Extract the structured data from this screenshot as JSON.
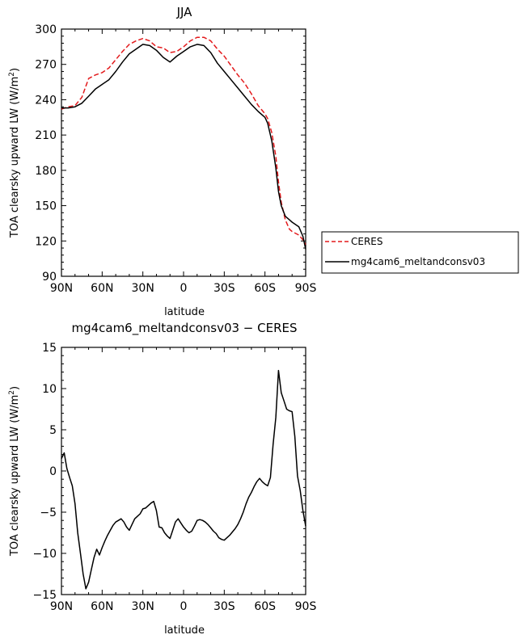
{
  "chart_data": [
    {
      "type": "line",
      "title": "JJA",
      "xlabel": "latitude",
      "ylabel": "TOA clearsky upward LW (W/m²)",
      "xlim": [
        90,
        -90
      ],
      "ylim": [
        90,
        300
      ],
      "xticks": [
        90,
        60,
        30,
        0,
        -30,
        -60,
        -90
      ],
      "xtick_labels": [
        "90N",
        "60N",
        "30N",
        "0",
        "30S",
        "60S",
        "90S"
      ],
      "yticks": [
        90,
        120,
        150,
        180,
        210,
        240,
        270,
        300
      ],
      "ytick_labels": [
        "90",
        "120",
        "150",
        "180",
        "210",
        "240",
        "270",
        "300"
      ],
      "legend": {
        "placement": "right",
        "entries": [
          "CERES",
          "mg4cam6_meltandconsv03"
        ]
      },
      "series": [
        {
          "name": "CERES",
          "color": "#e31a1c",
          "dash": "dashed",
          "x": [
            90,
            85,
            80,
            75,
            70,
            65,
            60,
            55,
            50,
            45,
            40,
            35,
            30,
            25,
            20,
            15,
            10,
            5,
            0,
            -5,
            -10,
            -15,
            -20,
            -25,
            -30,
            -35,
            -40,
            -45,
            -50,
            -55,
            -60,
            -62,
            -65,
            -68,
            -70,
            -72,
            -75,
            -78,
            -80,
            -85,
            -88,
            -90
          ],
          "values": [
            232,
            234,
            235,
            242,
            258,
            261,
            263,
            267,
            274,
            281,
            287,
            290,
            292,
            290,
            285,
            284,
            280,
            281,
            285,
            290,
            293,
            293,
            290,
            283,
            277,
            269,
            261,
            254,
            245,
            235,
            228,
            224,
            212,
            192,
            170,
            153,
            138,
            130,
            128,
            125,
            121,
            117
          ]
        },
        {
          "name": "mg4cam6_meltandconsv03",
          "color": "#000000",
          "dash": "solid",
          "x": [
            90,
            85,
            80,
            75,
            70,
            65,
            60,
            55,
            50,
            45,
            40,
            35,
            30,
            25,
            20,
            15,
            10,
            5,
            0,
            -5,
            -10,
            -15,
            -20,
            -25,
            -30,
            -35,
            -40,
            -45,
            -50,
            -55,
            -60,
            -62,
            -65,
            -68,
            -70,
            -72,
            -75,
            -78,
            -80,
            -85,
            -88,
            -90
          ],
          "values": [
            233,
            233,
            234,
            237,
            243,
            249,
            253,
            257,
            264,
            272,
            279,
            283,
            287,
            286,
            282,
            276,
            272,
            277,
            281,
            285,
            287,
            286,
            280,
            271,
            264,
            257,
            250,
            243,
            236,
            230,
            225,
            220,
            205,
            182,
            162,
            150,
            141,
            138,
            136,
            132,
            124,
            113
          ]
        }
      ]
    },
    {
      "type": "line",
      "title": "mg4cam6_meltandconsv03 − CERES",
      "xlabel": "latitude",
      "ylabel": "TOA clearsky upward LW (W/m²)",
      "xlim": [
        90,
        -90
      ],
      "ylim": [
        -15,
        15
      ],
      "xticks": [
        90,
        60,
        30,
        0,
        -30,
        -60,
        -90
      ],
      "xtick_labels": [
        "90N",
        "60N",
        "30N",
        "0",
        "30S",
        "60S",
        "90S"
      ],
      "yticks": [
        -15,
        -10,
        -5,
        0,
        5,
        10,
        15
      ],
      "ytick_labels": [
        "−15",
        "−10",
        "−5",
        "0",
        "5",
        "10",
        "15"
      ],
      "series": [
        {
          "color": "#000000",
          "dash": "solid",
          "x": [
            90,
            88,
            86,
            84,
            82,
            80,
            78,
            76,
            74,
            72,
            70,
            68,
            66,
            64,
            62,
            60,
            58,
            56,
            54,
            52,
            50,
            48,
            46,
            44,
            42,
            40,
            38,
            36,
            34,
            32,
            30,
            28,
            26,
            24,
            22,
            20,
            18,
            16,
            14,
            12,
            10,
            8,
            6,
            4,
            2,
            0,
            -2,
            -4,
            -6,
            -8,
            -10,
            -12,
            -14,
            -16,
            -18,
            -20,
            -22,
            -24,
            -26,
            -28,
            -30,
            -32,
            -34,
            -36,
            -38,
            -40,
            -42,
            -44,
            -46,
            -48,
            -50,
            -52,
            -54,
            -56,
            -58,
            -60,
            -62,
            -64,
            -66,
            -68,
            -70,
            -72,
            -74,
            -76,
            -78,
            -80,
            -82,
            -84,
            -86,
            -88,
            -90
          ],
          "values": [
            1.5,
            2.2,
            0.3,
            -0.8,
            -1.8,
            -4,
            -7.5,
            -10,
            -12.5,
            -14.3,
            -13.5,
            -12,
            -10.5,
            -9.5,
            -10.2,
            -9.3,
            -8.5,
            -7.8,
            -7.2,
            -6.6,
            -6.2,
            -6,
            -5.8,
            -6.2,
            -6.8,
            -7.2,
            -6.5,
            -5.8,
            -5.5,
            -5.2,
            -4.6,
            -4.5,
            -4.2,
            -3.9,
            -3.7,
            -4.8,
            -6.8,
            -6.9,
            -7.5,
            -7.9,
            -8.2,
            -7.2,
            -6.2,
            -5.8,
            -6.3,
            -6.8,
            -7.2,
            -7.5,
            -7.3,
            -6.7,
            -6,
            -5.9,
            -6,
            -6.2,
            -6.5,
            -6.9,
            -7.3,
            -7.6,
            -8.1,
            -8.3,
            -8.4,
            -8.1,
            -7.8,
            -7.4,
            -7,
            -6.5,
            -5.8,
            -5,
            -4,
            -3.2,
            -2.6,
            -1.9,
            -1.3,
            -0.9,
            -1.3,
            -1.6,
            -1.8,
            -0.8,
            3.2,
            6.5,
            12.2,
            9.5,
            8.5,
            7.5,
            7.3,
            7.2,
            4.2,
            -0.6,
            -2.4,
            -4.8,
            -6.7
          ]
        }
      ]
    }
  ]
}
